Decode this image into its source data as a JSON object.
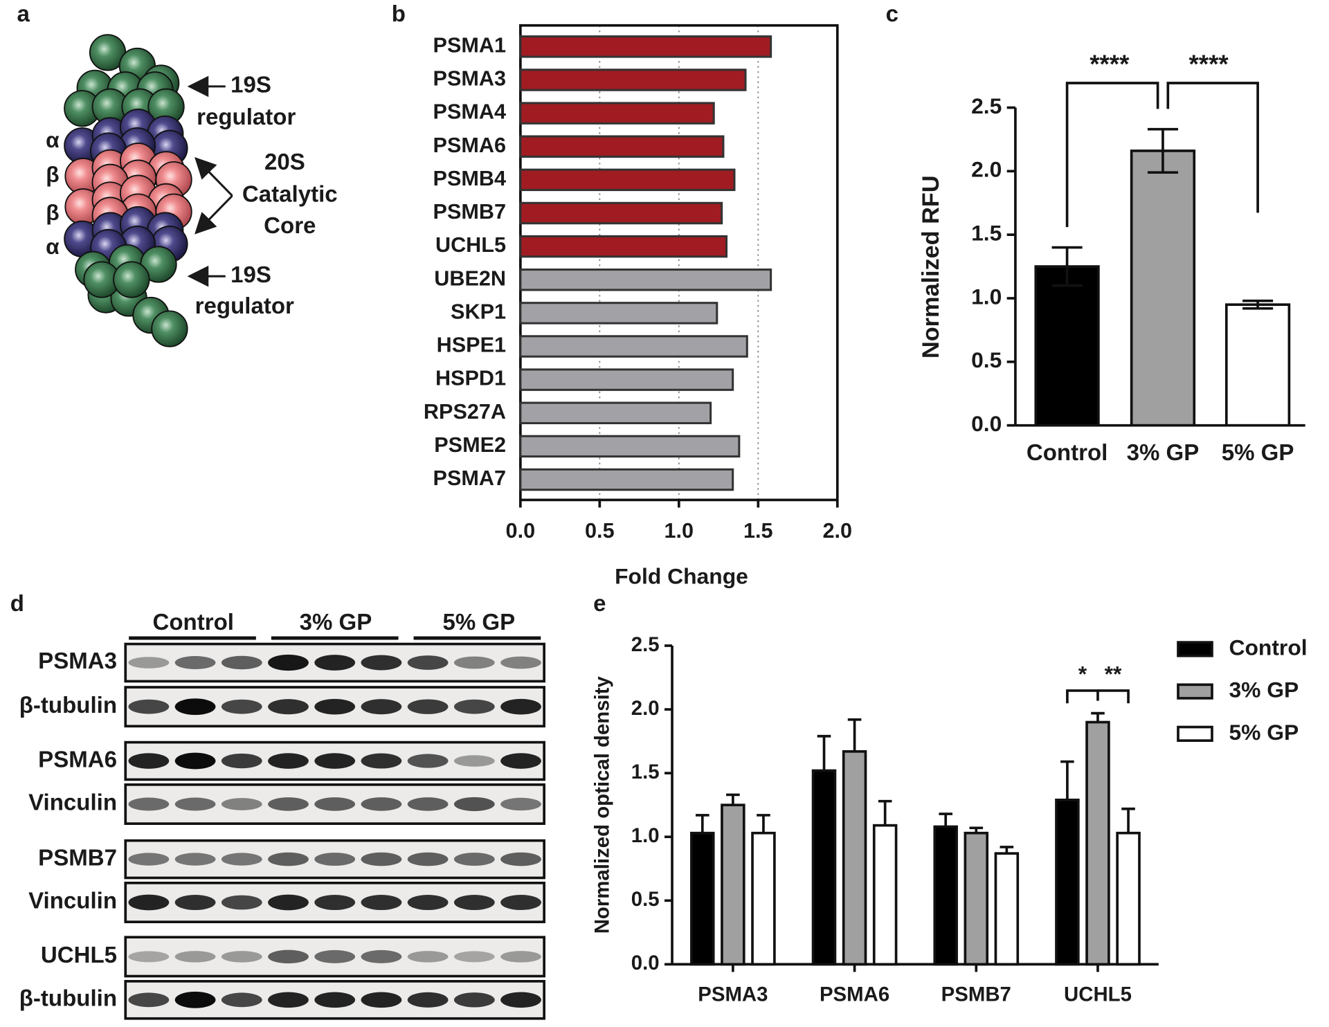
{
  "panel_labels": [
    "a",
    "b",
    "c",
    "d",
    "e"
  ],
  "diagram": {
    "rings": [
      "α",
      "β",
      "β",
      "α"
    ],
    "top_label": [
      "19S",
      "regulator"
    ],
    "core_label": [
      "20S",
      "Catalytic",
      "Core"
    ],
    "bottom_label": [
      "19S",
      "regulator"
    ]
  },
  "chart_data": [
    {
      "type": "hbar",
      "categories": [
        "PSMA1",
        "PSMA3",
        "PSMA4",
        "PSMA6",
        "PSMB4",
        "PSMB7",
        "UCHL5",
        "UBE2N",
        "SKP1",
        "HSPE1",
        "HSPD1",
        "RPS27A",
        "PSME2",
        "PSMA7"
      ],
      "values": [
        1.58,
        1.42,
        1.22,
        1.28,
        1.35,
        1.27,
        1.3,
        1.58,
        1.24,
        1.43,
        1.34,
        1.2,
        1.38,
        1.34
      ],
      "colors": [
        "#a01c22",
        "#a01c22",
        "#a01c22",
        "#a01c22",
        "#a01c22",
        "#a01c22",
        "#a01c22",
        "#a2a2a6",
        "#a2a2a6",
        "#a2a2a6",
        "#a2a2a6",
        "#a2a2a6",
        "#a2a2a6",
        "#a2a2a6"
      ],
      "xlim": [
        0,
        2
      ],
      "xticks": [
        {
          "value": 0,
          "label": "0.0"
        },
        0.5,
        {
          "value": 1,
          "label": "1.0"
        },
        1.5,
        {
          "value": 2,
          "label": "2.0"
        }
      ],
      "xlabel": "Fold Change",
      "grid": true
    },
    {
      "type": "bar",
      "ylabel": "Normalized RFU",
      "categories": [
        "Control",
        "3% GP",
        "5% GP"
      ],
      "values": [
        1.25,
        2.16,
        0.95
      ],
      "errors": [
        0.15,
        0.17,
        0.03
      ],
      "colors": [
        "#000000",
        "#a0a0a0",
        "#ffffff"
      ],
      "ylim": [
        0,
        2.5
      ],
      "yticks": [
        {
          "value": 0,
          "label": "0.0"
        },
        0.5,
        {
          "value": 1,
          "label": "1.0"
        },
        1.5,
        {
          "value": 2,
          "label": "2.0"
        },
        2.5
      ],
      "annotations": [
        "****",
        "****"
      ]
    },
    {
      "type": "grouped_bar",
      "ylabel": "Normalized optical density",
      "categories": [
        "PSMA3",
        "PSMA6",
        "PSMB7",
        "UCHL5"
      ],
      "series": [
        {
          "name": "Control",
          "color": "#000000",
          "values": [
            1.03,
            1.52,
            1.08,
            1.29
          ],
          "errors": [
            0.14,
            0.27,
            0.1,
            0.3
          ]
        },
        {
          "name": "3% GP",
          "color": "#a0a0a0",
          "values": [
            1.25,
            1.67,
            1.03,
            1.9
          ],
          "errors": [
            0.08,
            0.25,
            0.04,
            0.07
          ]
        },
        {
          "name": "5% GP",
          "color": "#ffffff",
          "values": [
            1.03,
            1.09,
            0.87,
            1.03
          ],
          "errors": [
            0.14,
            0.19,
            0.05,
            0.19
          ]
        }
      ],
      "ylim": [
        0,
        2.5
      ],
      "yticks": [
        {
          "value": 0,
          "label": "0.0"
        },
        0.5,
        {
          "value": 1,
          "label": "1.0"
        },
        1.5,
        {
          "value": 2,
          "label": "2.0"
        },
        2.5
      ],
      "annotations": [
        "*",
        "**"
      ],
      "legend": "upper right"
    }
  ],
  "blot": {
    "groups": [
      "Control",
      "3% GP",
      "5% GP"
    ],
    "rows": [
      "PSMA3",
      "β-tubulin",
      "PSMA6",
      "Vinculin",
      "PSMB7",
      "Vinculin",
      "UCHL5",
      "β-tubulin"
    ]
  }
}
